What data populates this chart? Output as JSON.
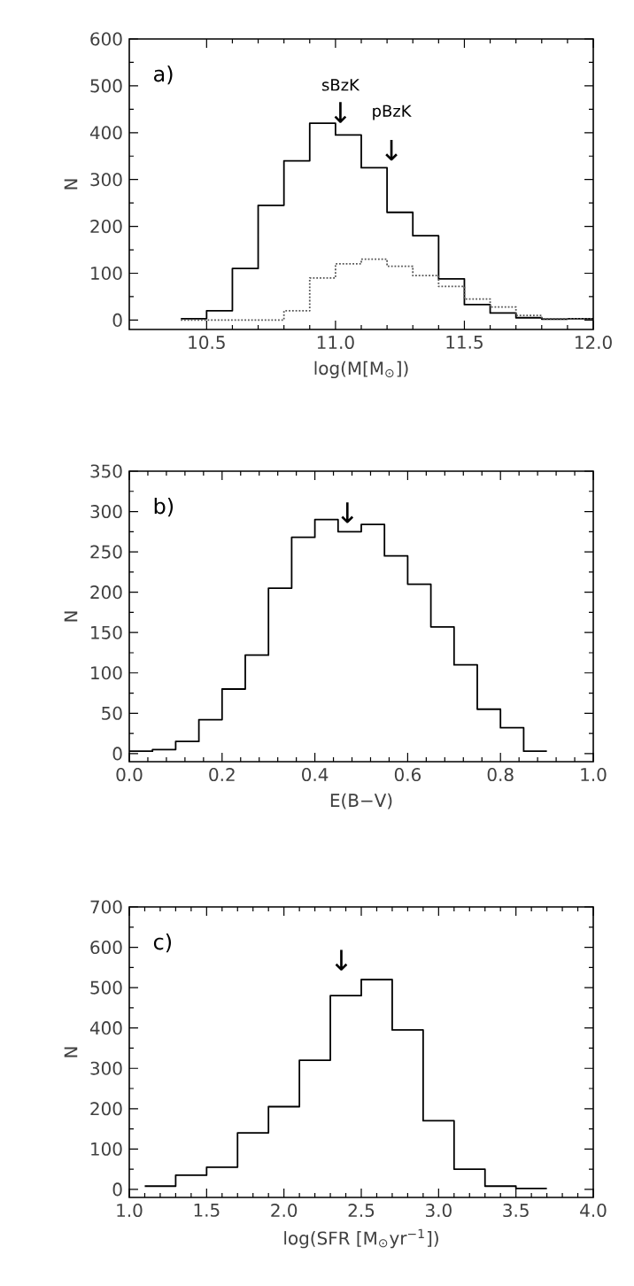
{
  "chart_data": [
    {
      "type": "histogram",
      "xlabel": "log(M[M$_{⊙}$])",
      "ylabel": "N",
      "bins": [
        10.4,
        10.5,
        10.6,
        10.7,
        10.8,
        10.9,
        11.0,
        11.1,
        11.2,
        11.3,
        11.4,
        11.5,
        11.6,
        11.7,
        11.8,
        11.9,
        12.0
      ],
      "series": [
        {
          "color": "#000000",
          "line_style": "solid",
          "values": [
            3,
            20,
            110,
            245,
            340,
            420,
            395,
            325,
            230,
            180,
            88,
            33,
            15,
            5,
            2,
            3
          ]
        },
        {
          "color": "#555555",
          "line_style": "dotted",
          "values": [
            0,
            0,
            0,
            0,
            20,
            90,
            120,
            130,
            115,
            95,
            72,
            45,
            28,
            10,
            3,
            3
          ]
        }
      ],
      "xlim": [
        10.2,
        12.0
      ],
      "xticks": [
        10.5,
        {
          "value": 11.0,
          "label": "11.0"
        },
        11.5,
        {
          "value": 12.0,
          "label": "12.0"
        }
      ],
      "ylim": [
        -20,
        600
      ],
      "yticks": [
        0,
        100,
        200,
        300,
        400,
        500,
        600
      ],
      "annotations": [
        "a)",
        "sBzK",
        "↓",
        "pBzK",
        "↓"
      ]
    },
    {
      "type": "histogram",
      "xlabel": "E(B−V)",
      "ylabel": "N",
      "bins": [
        0.0,
        0.05,
        0.1,
        0.15,
        0.2,
        0.25,
        0.3,
        0.35,
        0.4,
        0.45,
        0.5,
        0.55,
        0.6,
        0.65,
        0.7,
        0.75,
        0.8,
        0.85,
        0.9
      ],
      "values": [
        3,
        5,
        15,
        42,
        80,
        122,
        205,
        268,
        290,
        275,
        284,
        245,
        210,
        157,
        110,
        55,
        32,
        3
      ],
      "color": "#000000",
      "xlim": [
        0.0,
        1.0
      ],
      "xticks": [
        {
          "value": 0.0,
          "label": "0.0"
        },
        0.2,
        0.4,
        0.6,
        0.8,
        {
          "value": 1.0,
          "label": "1.0"
        }
      ],
      "ylim": [
        -10,
        350
      ],
      "yticks": [
        0,
        50,
        100,
        150,
        200,
        250,
        300,
        350
      ],
      "annotations": [
        "b)",
        "↓"
      ]
    },
    {
      "type": "histogram",
      "xlabel": "log(SFR [M$_{⊙}$yr$^{−1}$])",
      "ylabel": "N",
      "bins": [
        1.1,
        1.3,
        1.5,
        1.7,
        1.9,
        2.1,
        2.3,
        2.5,
        2.7,
        2.9,
        3.1,
        3.3,
        3.5,
        3.7
      ],
      "values": [
        8,
        35,
        55,
        140,
        205,
        320,
        480,
        520,
        395,
        170,
        50,
        8,
        2
      ],
      "color": "#000000",
      "xlim": [
        1.0,
        4.0
      ],
      "xticks": [
        {
          "value": 1.0,
          "label": "1.0"
        },
        1.5,
        {
          "value": 2.0,
          "label": "2.0"
        },
        2.5,
        {
          "value": 3.0,
          "label": "3.0"
        },
        3.5,
        {
          "value": 4.0,
          "label": "4.0"
        }
      ],
      "ylim": [
        -20,
        700
      ],
      "yticks": [
        0,
        100,
        200,
        300,
        400,
        500,
        600,
        700
      ],
      "annotations": [
        "c)",
        "↓"
      ]
    }
  ]
}
